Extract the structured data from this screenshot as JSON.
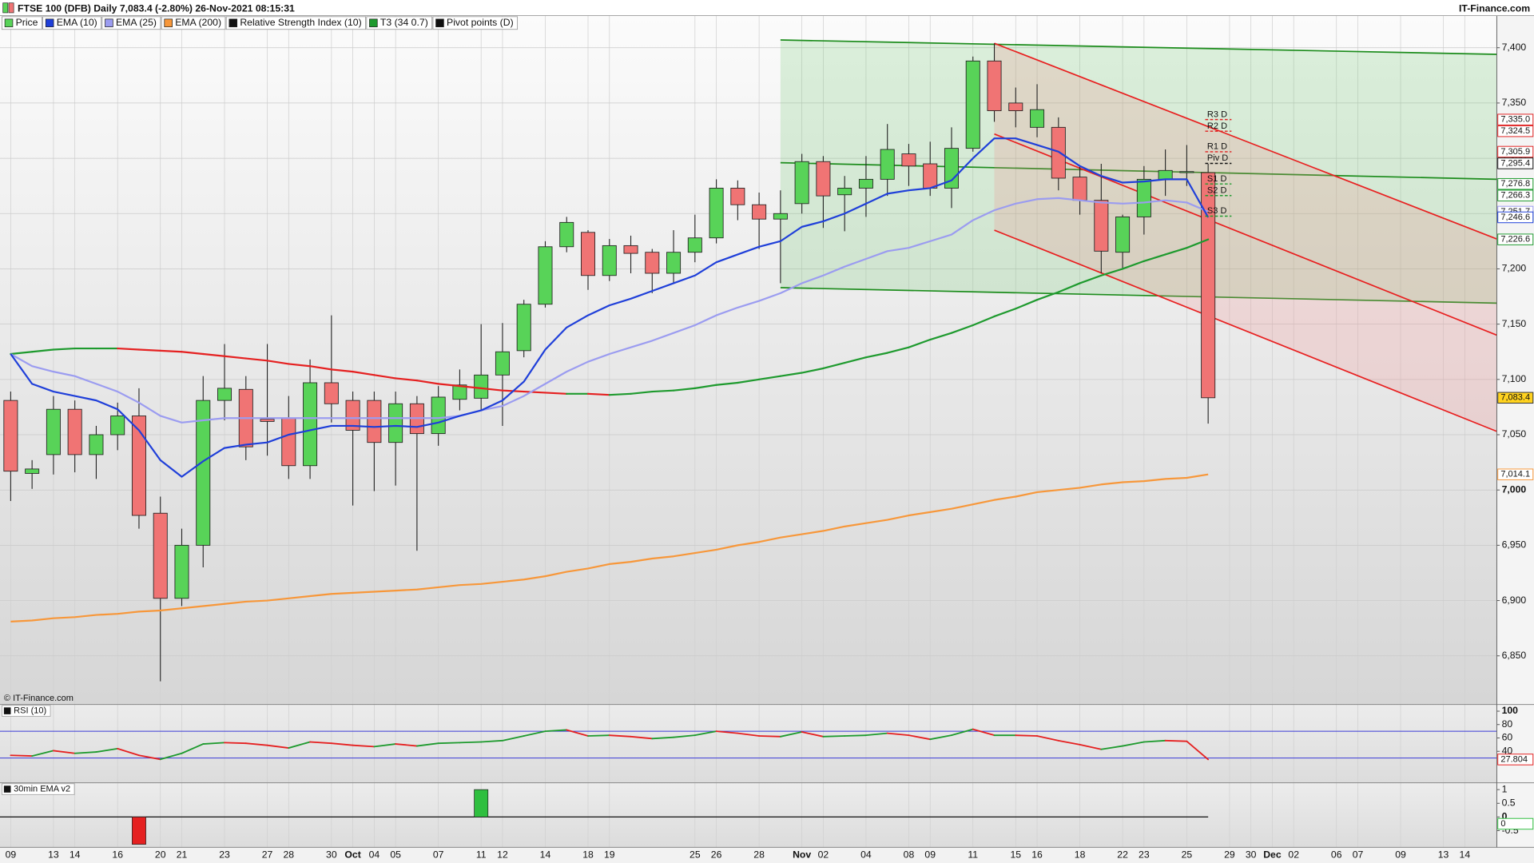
{
  "header": {
    "brand": "IT-Finance.com",
    "copyright": "© IT-Finance.com"
  },
  "chart_data": [
    {
      "type": "candlestick",
      "title": "FTSE 100 (DFB) Daily 7,083.4 (-2.80%) 26-Nov-2021 08:15:31",
      "price_name": "Price",
      "pivots_name": "Pivot points (D)",
      "pivots_color": "#111111",
      "categories": [
        "09",
        null,
        "13",
        "14",
        null,
        "16",
        null,
        "20",
        "21",
        null,
        "23",
        null,
        "27",
        "28",
        null,
        "30",
        "Oct",
        "04",
        "05",
        null,
        "07",
        null,
        "11",
        "12",
        null,
        "14",
        null,
        "18",
        "19",
        null,
        null,
        null,
        "25",
        "26",
        null,
        "28",
        null,
        "Nov",
        "02",
        null,
        "04",
        null,
        "08",
        "09",
        null,
        "11",
        null,
        "15",
        "16",
        null,
        "18",
        null,
        "22",
        "23",
        null,
        "25",
        null,
        "29",
        "30",
        "Dec",
        "02",
        null,
        "06",
        "07",
        null,
        "09",
        null,
        "13",
        "14",
        null
      ],
      "open": [
        7081,
        7015,
        7032,
        7073,
        7032,
        7050,
        7067,
        6979,
        6902,
        6950,
        7081,
        7091,
        7064,
        7065,
        7022,
        7097,
        7081,
        7081,
        7043,
        7078,
        7051,
        7082,
        7083,
        7104,
        7126,
        7168,
        7220,
        7233,
        7194,
        7221,
        7215,
        7196,
        7215,
        7228,
        7273,
        7258,
        7245,
        7259,
        7297,
        7267,
        7273,
        7281,
        7304,
        7295,
        7273,
        7309,
        7388,
        7350,
        7328,
        7328,
        7283,
        7262,
        7215,
        7247,
        7281,
        7287,
        7287,
        null,
        null,
        null,
        null,
        null,
        null,
        null,
        null,
        null,
        null,
        null,
        null,
        null
      ],
      "high": [
        7089,
        7027,
        7085,
        7081,
        7058,
        7079,
        7092,
        6994,
        6965,
        7103,
        7132,
        7103,
        7132,
        7085,
        7118,
        7158,
        7089,
        7089,
        7089,
        7085,
        7094,
        7109,
        7150,
        7151,
        7172,
        7225,
        7247,
        7235,
        7227,
        7230,
        7218,
        7235,
        7249,
        7281,
        7280,
        7269,
        7271,
        7304,
        7302,
        7284,
        7302,
        7331,
        7313,
        7315,
        7328,
        7392,
        7404,
        7364,
        7367,
        7337,
        7293,
        7295,
        7249,
        7293,
        7308,
        7312,
        7295,
        null,
        null,
        null,
        null,
        null,
        null,
        null,
        null,
        null,
        null,
        null,
        null,
        null
      ],
      "low": [
        6990,
        7001,
        7014,
        7016,
        7010,
        7036,
        6965,
        6827,
        6895,
        6930,
        7063,
        7027,
        7031,
        7010,
        7010,
        7061,
        6986,
        6999,
        7004,
        6945,
        7040,
        7072,
        7072,
        7058,
        7120,
        7165,
        7215,
        7181,
        7189,
        7196,
        7178,
        7187,
        7206,
        7223,
        7244,
        7218,
        7187,
        7250,
        7237,
        7234,
        7247,
        7266,
        7275,
        7266,
        7255,
        7306,
        7333,
        7328,
        7319,
        7271,
        7249,
        7196,
        7200,
        7231,
        7266,
        7275,
        7060,
        null,
        null,
        null,
        null,
        null,
        null,
        null,
        null,
        null,
        null,
        null,
        null,
        null
      ],
      "close": [
        7017,
        7019,
        7073,
        7032,
        7050,
        7067,
        6977,
        6902,
        6950,
        7081,
        7092,
        7039,
        7062,
        7022,
        7097,
        7078,
        7054,
        7043,
        7078,
        7051,
        7084,
        7095,
        7104,
        7125,
        7168,
        7220,
        7242,
        7194,
        7221,
        7214,
        7196,
        7215,
        7228,
        7273,
        7258,
        7245,
        7250,
        7297,
        7266,
        7273,
        7281,
        7308,
        7293,
        7273,
        7309,
        7388,
        7343,
        7343,
        7344,
        7282,
        7262,
        7216,
        7247,
        7281,
        7289,
        7288,
        7083.4,
        null,
        null,
        null,
        null,
        null,
        null,
        null,
        null,
        null,
        null,
        null,
        null,
        null
      ],
      "close_label": "7,083.4",
      "close_label_color": "#ffd21f",
      "up_color": "#58d358",
      "down_color": "#f07474",
      "ylim": [
        6806,
        7429
      ],
      "yticks": [
        {
          "value": 6850,
          "label": "6,850"
        },
        {
          "value": 6900,
          "label": "6,900"
        },
        {
          "value": 6950,
          "label": "6,950"
        },
        {
          "value": 7000,
          "label": "7,000"
        },
        {
          "value": 7050,
          "label": "7,050"
        },
        {
          "value": 7100,
          "label": "7,100"
        },
        {
          "value": 7150,
          "label": "7,150"
        },
        {
          "value": 7200,
          "label": "7,200"
        },
        {
          "value": 7250,
          "label": "7,250"
        },
        {
          "value": 7300,
          "label": "7,300"
        },
        {
          "value": 7350,
          "label": "7,350"
        },
        {
          "value": 7400,
          "label": "7,400"
        }
      ],
      "grid": true,
      "series": [
        {
          "name": "EMA (200)",
          "color": "#f7973a",
          "value_label": "7,014.1",
          "values": [
            6881,
            6882,
            6884,
            6885,
            6887,
            6888,
            6890,
            6891,
            6893,
            6895,
            6897,
            6899,
            6900,
            6902,
            6904,
            6906,
            6907,
            6908,
            6909,
            6910,
            6912,
            6914,
            6915,
            6917,
            6919,
            6922,
            6926,
            6929,
            6933,
            6935,
            6938,
            6940,
            6943,
            6946,
            6950,
            6953,
            6957,
            6960,
            6963,
            6967,
            6970,
            6973,
            6977,
            6980,
            6983,
            6987,
            6991,
            6994,
            6998,
            7000,
            7002,
            7005,
            7007,
            7008,
            7010,
            7011,
            7014.1,
            null,
            null,
            null,
            null,
            null,
            null,
            null,
            null,
            null,
            null,
            null,
            null,
            null
          ]
        },
        {
          "name": "T3 (34 0.7)",
          "up_color": "#1e9a2e",
          "down_color": "#e52020",
          "value_label": "7,226.6",
          "values": [
            7123,
            7125,
            7127,
            7128,
            7128,
            7128,
            7127,
            7126,
            7125,
            7123,
            7121,
            7119,
            7117,
            7114,
            7112,
            7109,
            7107,
            7104,
            7101,
            7099,
            7096,
            7094,
            7092,
            7090,
            7089,
            7088,
            7087,
            7087,
            7086,
            7087,
            7089,
            7090,
            7092,
            7095,
            7097,
            7100,
            7103,
            7106,
            7110,
            7115,
            7120,
            7124,
            7129,
            7136,
            7142,
            7149,
            7157,
            7164,
            7172,
            7179,
            7187,
            7194,
            7200,
            7207,
            7213,
            7219,
            7226.6,
            null,
            null,
            null,
            null,
            null,
            null,
            null,
            null,
            null,
            null,
            null,
            null,
            null
          ]
        },
        {
          "name": "EMA (25)",
          "color": "#9b9cf0",
          "value_label": "7,251.7",
          "values": [
            7123,
            7112,
            7107,
            7103,
            7096,
            7089,
            7079,
            7067,
            7061,
            7063,
            7065,
            7065,
            7065,
            7065,
            7065,
            7065,
            7065,
            7065,
            7065,
            7065,
            7065,
            7067,
            7072,
            7076,
            7085,
            7096,
            7107,
            7116,
            7123,
            7129,
            7135,
            7142,
            7149,
            7158,
            7165,
            7171,
            7178,
            7187,
            7194,
            7202,
            7209,
            7216,
            7219,
            7225,
            7231,
            7244,
            7253,
            7259,
            7263,
            7264,
            7262,
            7260,
            7259,
            7260,
            7262,
            7260,
            7251.7,
            null,
            null,
            null,
            null,
            null,
            null,
            null,
            null,
            null,
            null,
            null,
            null,
            null
          ]
        },
        {
          "name": "EMA (10)",
          "color": "#1f3fd9",
          "value_label": "7,246.6",
          "values": [
            7123,
            7096,
            7089,
            7085,
            7081,
            7073,
            7054,
            7027,
            7012,
            7026,
            7038,
            7041,
            7043,
            7050,
            7054,
            7058,
            7058,
            7057,
            7058,
            7057,
            7061,
            7067,
            7072,
            7081,
            7098,
            7127,
            7147,
            7158,
            7167,
            7173,
            7180,
            7187,
            7194,
            7206,
            7213,
            7220,
            7225,
            7238,
            7243,
            7250,
            7259,
            7268,
            7271,
            7273,
            7280,
            7300,
            7318,
            7318,
            7312,
            7306,
            7293,
            7284,
            7278,
            7279,
            7281,
            7281,
            7246.6,
            null,
            null,
            null,
            null,
            null,
            null,
            null,
            null,
            null,
            null,
            null,
            null,
            null
          ]
        }
      ],
      "channels": [
        {
          "color": "#1c8c1c",
          "fill": "#6cc86c",
          "x": [
            36,
            69.5
          ],
          "top": [
            7407,
            7394
          ],
          "middle": [
            7296,
            7281
          ],
          "bottom": [
            7183,
            7169
          ]
        },
        {
          "color": "#e82020",
          "fill": "#f08a8a",
          "x": [
            46,
            69.5
          ],
          "top": [
            7404,
            7227
          ],
          "middle": [
            7322,
            7140
          ],
          "bottom": [
            7235,
            7053
          ]
        }
      ],
      "pivots": [
        {
          "name": "R3 D",
          "value": 7335.0,
          "label": "7,335.0",
          "color": "#e02020"
        },
        {
          "name": "R2 D",
          "value": 7324.5,
          "label": "7,324.5",
          "color": "#e02020"
        },
        {
          "name": "R1 D",
          "value": 7305.9,
          "label": "7,305.9",
          "color": "#e02020"
        },
        {
          "name": "Piv D",
          "value": 7295.4,
          "label": "7,295.4",
          "color": "#111111"
        },
        {
          "name": "S1 D",
          "value": 7276.8,
          "label": "7,276.8",
          "color": "#1e9a2e"
        },
        {
          "name": "S2 D",
          "value": 7266.3,
          "label": "7,266.3",
          "color": "#1e9a2e"
        },
        {
          "name": "S3 D",
          "value": 7247.7,
          "label": "7,247.7",
          "color": "#1e9a2e"
        }
      ]
    },
    {
      "type": "line",
      "name": "Relative Strength Index (10)",
      "title": "RSI (10)",
      "legend_color": "#111111",
      "values": [
        34,
        33,
        41,
        37,
        39,
        44,
        34,
        28,
        37,
        51,
        53,
        52,
        49,
        45,
        54,
        52,
        49,
        47,
        51,
        48,
        52,
        53,
        54,
        56,
        63,
        70,
        72,
        63,
        64,
        62,
        59,
        61,
        64,
        70,
        67,
        63,
        62,
        69,
        62,
        63,
        64,
        67,
        64,
        58,
        64,
        73,
        64,
        64,
        63,
        56,
        50,
        43,
        48,
        54,
        56,
        55,
        27.804,
        null,
        null,
        null,
        null,
        null,
        null,
        null,
        null,
        null,
        null,
        null,
        null,
        null
      ],
      "up_color": "#1e9a2e",
      "down_color": "#e52020",
      "value_label": "27.804",
      "ylim": [
        -7,
        110
      ],
      "yticks": [
        100,
        80,
        60,
        40
      ],
      "levels": [
        70,
        30
      ],
      "level_color": "#3b3bd6"
    },
    {
      "type": "bar",
      "title": "30min EMA v2",
      "legend_color": "#111111",
      "values": [
        0,
        0,
        0,
        0,
        0,
        0,
        -1,
        0,
        0,
        0,
        0,
        0,
        0,
        0,
        0,
        0,
        0,
        0,
        0,
        0,
        0,
        0,
        1,
        0,
        0,
        0,
        0,
        0,
        0,
        0,
        0,
        0,
        0,
        0,
        0,
        0,
        0,
        0,
        0,
        0,
        0,
        0,
        0,
        0,
        0,
        0,
        0,
        0,
        0,
        0,
        0,
        0,
        0,
        0,
        0,
        0,
        0,
        null,
        null,
        null,
        null,
        null,
        null,
        null,
        null,
        null,
        null,
        null,
        null,
        null
      ],
      "positive_color": "#2fbf3f",
      "negative_color": "#e52020",
      "baseline_color": "#111111",
      "value_label": "0",
      "ylim": [
        -1.11,
        1.25
      ],
      "yticks": [
        1,
        0.5,
        0,
        -0.5
      ]
    }
  ]
}
